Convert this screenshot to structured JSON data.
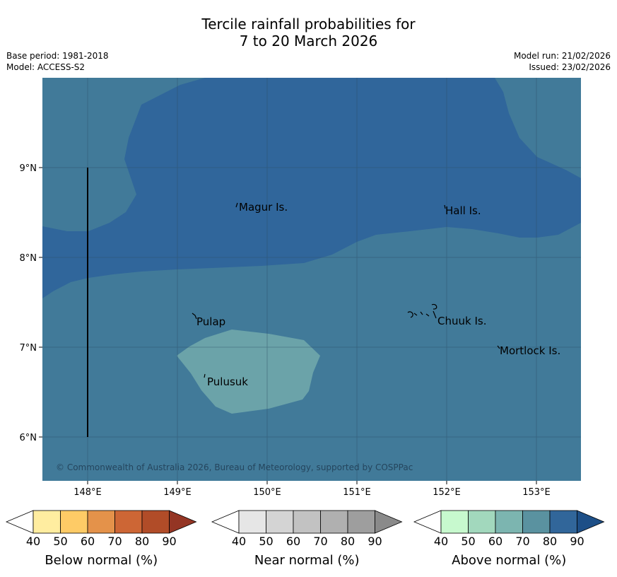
{
  "title": {
    "line1": "Tercile rainfall probabilities for",
    "line2": "7 to 20 March 2026"
  },
  "meta_left": {
    "base_period": "Base period: 1981-2018",
    "model": "Model: ACCESS-S2"
  },
  "meta_right": {
    "model_run": "Model run: 21/02/2026",
    "issued": "Issued: 23/02/2026"
  },
  "map": {
    "lon_ticks": [
      "148°E",
      "149°E",
      "150°E",
      "151°E",
      "152°E",
      "153°E"
    ],
    "lat_ticks": [
      "9°N",
      "8°N",
      "7°N",
      "6°N"
    ],
    "places": [
      "Magur Is.",
      "Hall Is.",
      "Pulap",
      "Chuuk Is.",
      "Mortlock Is.",
      "Pulusuk"
    ],
    "copyright": "© Commonwealth of Australia 2026, Bureau of Meteorology, supported by COSPPac",
    "colors": {
      "above_70": "#417a99",
      "above_80": "#30669b",
      "above_60": "#6ba3a9",
      "water_bg": "#417a99"
    }
  },
  "colorbars": [
    {
      "title": "Below normal (%)",
      "ticks": [
        "40",
        "50",
        "60",
        "70",
        "80",
        "90"
      ],
      "colors": [
        "#ffffff",
        "#ffeda0",
        "#fecb66",
        "#e4924a",
        "#cd6635",
        "#b14c28",
        "#943524"
      ]
    },
    {
      "title": "Near normal (%)",
      "ticks": [
        "40",
        "50",
        "60",
        "70",
        "80",
        "90"
      ],
      "colors": [
        "#ffffff",
        "#e6e6e6",
        "#d4d4d4",
        "#c2c2c2",
        "#b0b0b0",
        "#9e9e9e",
        "#8a8a8a"
      ]
    },
    {
      "title": "Above normal (%)",
      "ticks": [
        "40",
        "50",
        "60",
        "70",
        "80",
        "90"
      ],
      "colors": [
        "#ffffff",
        "#c7f9ce",
        "#a2d8bd",
        "#7cb5b0",
        "#5a92a0",
        "#31669a",
        "#1d4f87"
      ]
    }
  ]
}
